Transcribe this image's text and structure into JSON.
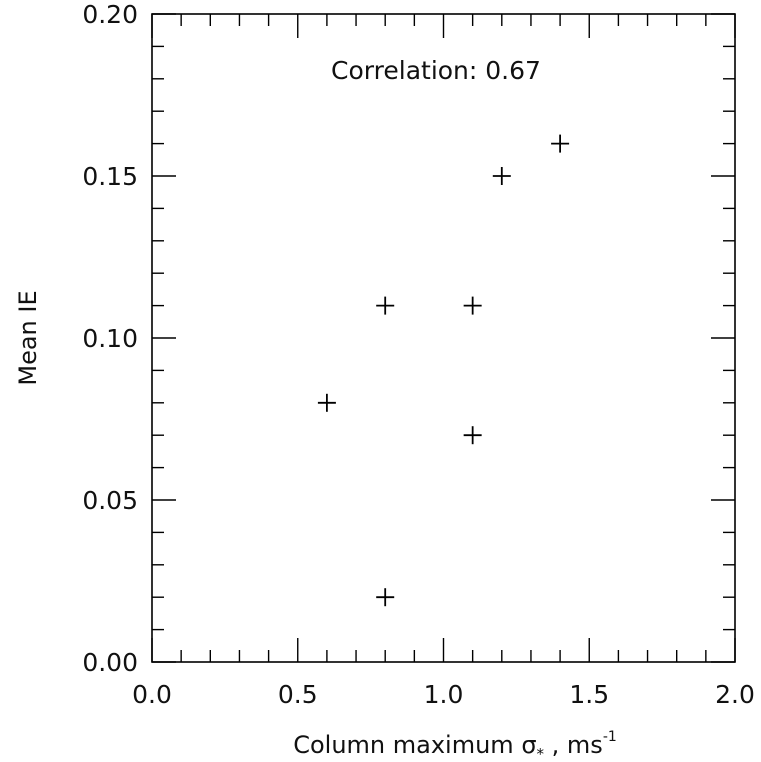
{
  "chart_data": {
    "type": "scatter",
    "title": "",
    "xlabel": {
      "prefix": "Column maximum ",
      "symbol": "σ",
      "symbol_subscript": "*",
      "separator": " , ",
      "unit": "ms",
      "unit_superscript": "-1"
    },
    "ylabel": "Mean IE",
    "annotation": "Correlation: 0.67",
    "xlim": [
      0.0,
      2.0
    ],
    "ylim": [
      0.0,
      0.2
    ],
    "x_ticks": [
      "0.0",
      "0.5",
      "1.0",
      "1.5",
      "2.0"
    ],
    "y_ticks": [
      "0.00",
      "0.05",
      "0.10",
      "0.15",
      "0.20"
    ],
    "marker": "plus",
    "color": "#000000",
    "grid": false,
    "points": [
      {
        "x": 0.6,
        "y": 0.08
      },
      {
        "x": 0.8,
        "y": 0.11
      },
      {
        "x": 0.8,
        "y": 0.02
      },
      {
        "x": 1.1,
        "y": 0.11
      },
      {
        "x": 1.1,
        "y": 0.07
      },
      {
        "x": 1.2,
        "y": 0.15
      },
      {
        "x": 1.4,
        "y": 0.16
      }
    ]
  }
}
